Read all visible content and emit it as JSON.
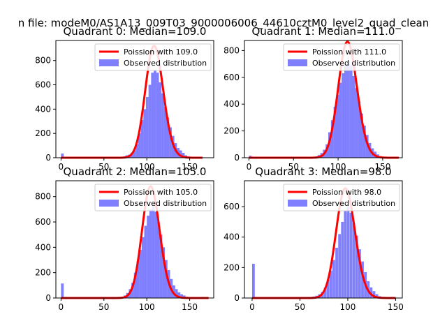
{
  "figure_title": "n file: modeM0/AS1A13_009T03_9000006006_44610cztM0_level2_quad_clean",
  "colors": {
    "bars": "#8080ff",
    "poisson_line": "#ff0000",
    "axes": "#000000",
    "background": "#ffffff"
  },
  "chart_data": [
    {
      "type": "bar",
      "title": "Quadrant 0: Median=109.0",
      "legend_position": "top-right",
      "legend": {
        "line_label": "Poission with 109.0",
        "bar_label": "Observed distribution"
      },
      "xlim": [
        -6,
        178
      ],
      "ylim": [
        0,
        965
      ],
      "xticks": [
        0,
        50,
        100,
        150
      ],
      "yticks": [
        0,
        200,
        400,
        600,
        800
      ],
      "bin_width": 3.1,
      "bins": [
        [
          0,
          35
        ],
        [
          72,
          10
        ],
        [
          75,
          20
        ],
        [
          78,
          25
        ],
        [
          81,
          40
        ],
        [
          84,
          60
        ],
        [
          87,
          110
        ],
        [
          90,
          200
        ],
        [
          93,
          310
        ],
        [
          96,
          400
        ],
        [
          99,
          500
        ],
        [
          102,
          600
        ],
        [
          105,
          700
        ],
        [
          108,
          720
        ],
        [
          111,
          700
        ],
        [
          114,
          620
        ],
        [
          117,
          530
        ],
        [
          120,
          420
        ],
        [
          123,
          330
        ],
        [
          126,
          250
        ],
        [
          129,
          180
        ],
        [
          132,
          120
        ],
        [
          135,
          80
        ],
        [
          138,
          60
        ],
        [
          141,
          40
        ],
        [
          144,
          20
        ],
        [
          147,
          10
        ]
      ],
      "poisson_mean": 109.0,
      "poisson_peak": 920,
      "poisson_range": [
        0,
        165
      ]
    },
    {
      "type": "bar",
      "title": "Quadrant 1: Median=111.0",
      "legend_position": "top-right",
      "legend": {
        "line_label": "Poission with 111.0",
        "bar_label": "Observed distribution"
      },
      "xlim": [
        -5,
        172
      ],
      "ylim": [
        0,
        875
      ],
      "xticks": [
        0,
        50,
        100,
        150
      ],
      "yticks": [
        0,
        200,
        400,
        600,
        800
      ],
      "bin_width": 3.1,
      "bins": [
        [
          0,
          15
        ],
        [
          74,
          10
        ],
        [
          77,
          20
        ],
        [
          80,
          35
        ],
        [
          83,
          60
        ],
        [
          86,
          100
        ],
        [
          89,
          190
        ],
        [
          92,
          280
        ],
        [
          95,
          380
        ],
        [
          98,
          470
        ],
        [
          101,
          560
        ],
        [
          104,
          630
        ],
        [
          107,
          700
        ],
        [
          110,
          720
        ],
        [
          113,
          690
        ],
        [
          116,
          610
        ],
        [
          119,
          520
        ],
        [
          122,
          420
        ],
        [
          125,
          330
        ],
        [
          128,
          240
        ],
        [
          131,
          170
        ],
        [
          134,
          110
        ],
        [
          137,
          70
        ],
        [
          140,
          45
        ],
        [
          143,
          25
        ],
        [
          146,
          12
        ]
      ],
      "poisson_mean": 111.0,
      "poisson_peak": 865,
      "poisson_range": [
        0,
        168
      ]
    },
    {
      "type": "bar",
      "title": "Quadrant 2: Median=105.0",
      "legend_position": "top-right",
      "legend": {
        "line_label": "Poission with 105.0",
        "bar_label": "Observed distribution"
      },
      "xlim": [
        -6,
        178
      ],
      "ylim": [
        0,
        925
      ],
      "xticks": [
        0,
        50,
        100,
        150
      ],
      "yticks": [
        0,
        200,
        400,
        600,
        800
      ],
      "bin_width": 3.1,
      "bins": [
        [
          0,
          115
        ],
        [
          70,
          10
        ],
        [
          73,
          20
        ],
        [
          76,
          40
        ],
        [
          79,
          70
        ],
        [
          82,
          120
        ],
        [
          85,
          200
        ],
        [
          88,
          290
        ],
        [
          91,
          380
        ],
        [
          94,
          480
        ],
        [
          97,
          570
        ],
        [
          100,
          650
        ],
        [
          103,
          700
        ],
        [
          106,
          720
        ],
        [
          109,
          680
        ],
        [
          112,
          600
        ],
        [
          115,
          500
        ],
        [
          118,
          400
        ],
        [
          121,
          300
        ],
        [
          124,
          220
        ],
        [
          127,
          150
        ],
        [
          130,
          100
        ],
        [
          133,
          70
        ],
        [
          136,
          45
        ],
        [
          139,
          30
        ],
        [
          142,
          20
        ],
        [
          145,
          10
        ]
      ],
      "poisson_mean": 105.0,
      "poisson_peak": 880,
      "poisson_range": [
        0,
        172
      ]
    },
    {
      "type": "bar",
      "title": "Quadrant 3: Median=98.0",
      "legend_position": "top-right",
      "legend": {
        "line_label": "Poission with 98.0",
        "bar_label": "Observed distribution"
      },
      "xlim": [
        -8,
        157
      ],
      "ylim": [
        0,
        770
      ],
      "xticks": [
        0,
        50,
        100,
        150
      ],
      "yticks": [
        0,
        200,
        400,
        600
      ],
      "bin_width": 2.8,
      "bins": [
        [
          0,
          225
        ],
        [
          58,
          5
        ],
        [
          63,
          10
        ],
        [
          66,
          15
        ],
        [
          69,
          25
        ],
        [
          72,
          40
        ],
        [
          75,
          70
        ],
        [
          78,
          120
        ],
        [
          81,
          180
        ],
        [
          84,
          250
        ],
        [
          87,
          330
        ],
        [
          90,
          420
        ],
        [
          93,
          500
        ],
        [
          96,
          570
        ],
        [
          99,
          600
        ],
        [
          102,
          560
        ],
        [
          105,
          490
        ],
        [
          108,
          410
        ],
        [
          111,
          320
        ],
        [
          114,
          240
        ],
        [
          117,
          170
        ],
        [
          120,
          110
        ],
        [
          123,
          70
        ],
        [
          126,
          45
        ],
        [
          129,
          25
        ],
        [
          132,
          12
        ]
      ],
      "poisson_mean": 98.0,
      "poisson_peak": 720,
      "poisson_range": [
        0,
        150
      ]
    }
  ]
}
